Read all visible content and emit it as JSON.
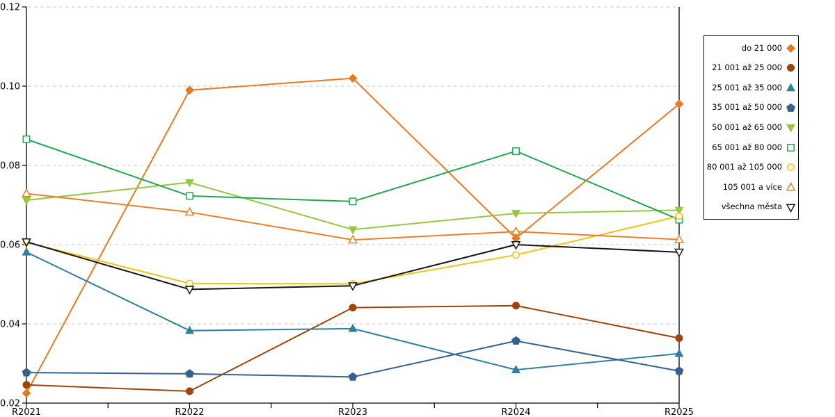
{
  "figure": {
    "background_color": "#FFFFFF",
    "axis_color": "#000000"
  },
  "chart_data": {
    "type": "line",
    "title": "",
    "xlabel": "",
    "ylabel": "",
    "x_categories": [
      "R2021",
      "R2022",
      "R2023",
      "R2024",
      "R2025"
    ],
    "ylim": [
      0.02,
      0.12
    ],
    "y_ticks": [
      0.02,
      0.04,
      0.06,
      0.08,
      0.1,
      0.12
    ],
    "y_tick_labels": [
      "0.02",
      "0.04",
      "0.06",
      "0.08",
      "0.10",
      "0.12"
    ],
    "grid": "horizontal dashed gridlines",
    "gridline_color": "#C6C6C6",
    "legend_position": "right",
    "series": [
      {
        "name": "do 21 000",
        "color": "#E8791F",
        "marker": "diamond",
        "fill": "filled",
        "values": [
          0.0225,
          0.099,
          0.102,
          0.0616,
          0.0955
        ]
      },
      {
        "name": "21 001 až 25 000",
        "color": "#9E430B",
        "marker": "circle",
        "fill": "filled",
        "values": [
          0.0246,
          0.023,
          0.0441,
          0.0446,
          0.0364
        ]
      },
      {
        "name": "25 001 až 35 000",
        "color": "#2F7F9D",
        "marker": "triangle-up",
        "fill": "filled",
        "values": [
          0.0581,
          0.0383,
          0.0388,
          0.0284,
          0.0325
        ]
      },
      {
        "name": "35 001 až 50 000",
        "color": "#35618F",
        "marker": "pentagon",
        "fill": "filled",
        "values": [
          0.0277,
          0.0274,
          0.0266,
          0.0357,
          0.0281
        ]
      },
      {
        "name": "50 001 až 65 000",
        "color": "#93C83F",
        "marker": "triangle-down",
        "fill": "filled",
        "values": [
          0.0712,
          0.0757,
          0.0638,
          0.0679,
          0.0687
        ]
      },
      {
        "name": "65 001 až 80 000",
        "color": "#21A74F",
        "marker": "square",
        "fill": "open",
        "values": [
          0.0866,
          0.0723,
          0.0709,
          0.0836,
          0.0663
        ]
      },
      {
        "name": "80 001 až 105 000",
        "color": "#F5C211",
        "marker": "circle",
        "fill": "open",
        "values": [
          0.0606,
          0.0502,
          0.0501,
          0.0574,
          0.0672
        ]
      },
      {
        "name": "105 001 a více",
        "color": "#F07E28",
        "marker": "triangle-up",
        "fill": "open",
        "values": [
          0.0729,
          0.0682,
          0.0612,
          0.0633,
          0.0613
        ]
      },
      {
        "name": "všechna města",
        "color": "#141414",
        "marker": "triangle-down",
        "fill": "open",
        "values": [
          0.0607,
          0.0487,
          0.0496,
          0.06,
          0.0581
        ]
      }
    ]
  }
}
